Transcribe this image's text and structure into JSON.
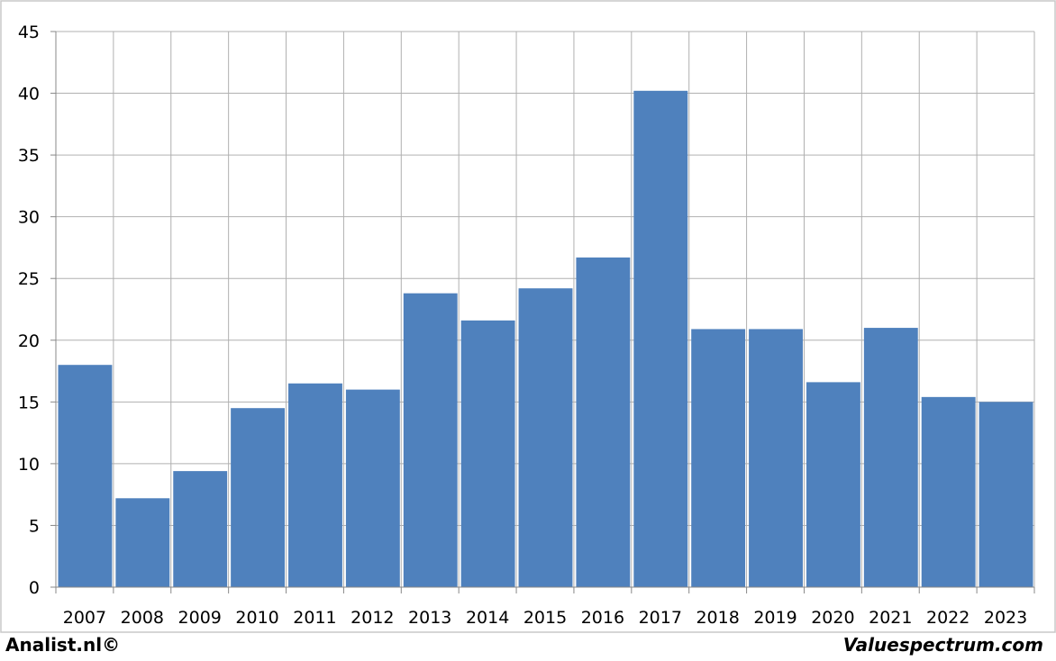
{
  "chart_data": {
    "type": "bar",
    "categories": [
      "2007",
      "2008",
      "2009",
      "2010",
      "2011",
      "2012",
      "2013",
      "2014",
      "2015",
      "2016",
      "2017",
      "2018",
      "2019",
      "2020",
      "2021",
      "2022",
      "2023"
    ],
    "values": [
      18.0,
      7.2,
      9.4,
      14.5,
      16.5,
      16.0,
      23.8,
      21.6,
      24.2,
      26.7,
      40.2,
      20.9,
      20.9,
      16.6,
      21.0,
      15.4,
      15.0
    ],
    "yticks": [
      "0",
      "5",
      "10",
      "15",
      "20",
      "25",
      "30",
      "35",
      "40",
      "45"
    ],
    "ylim": [
      0,
      45
    ],
    "grid": true,
    "bar_color": "#4F81BD",
    "grid_color": "#B0B0B0",
    "title": "",
    "xlabel": "",
    "ylabel": ""
  },
  "footer": {
    "left_text": "Analist.nl©",
    "right_text": "Valuespectrum.com"
  }
}
